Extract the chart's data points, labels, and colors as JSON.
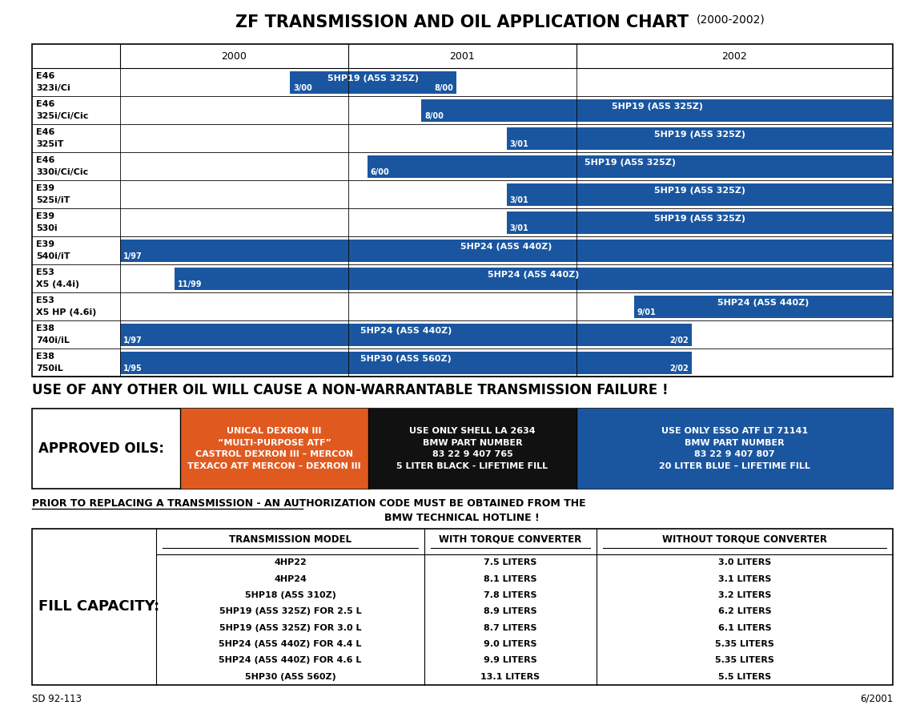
{
  "title_main": "ZF TRANSMISSION AND OIL APPLICATION CHART",
  "title_sub": "(2000-2002)",
  "bg_color": "#ffffff",
  "blue": "#1a56a0",
  "orange": "#e05a20",
  "black_fill": "#111111",
  "rows": [
    {
      "car1": "E46",
      "car2": "323i/Ci",
      "label": "5HP19 (A5S 325Z)",
      "bs": 0.22,
      "be": 0.435,
      "nl": "3/00",
      "nr": "8/00"
    },
    {
      "car1": "E46",
      "car2": "325i/Ci/Cic",
      "label": "5HP19 (A5S 325Z)",
      "bs": 0.39,
      "be": 1.0,
      "nl": "8/00",
      "nr": ""
    },
    {
      "car1": "E46",
      "car2": "325iT",
      "label": "5HP19 (A5S 325Z)",
      "bs": 0.5,
      "be": 1.0,
      "nl": "3/01",
      "nr": ""
    },
    {
      "car1": "E46",
      "car2": "330i/Ci/Cic",
      "label": "5HP19 (A5S 325Z)",
      "bs": 0.32,
      "be": 1.0,
      "nl": "6/00",
      "nr": ""
    },
    {
      "car1": "E39",
      "car2": "525i/iT",
      "label": "5HP19 (A5S 325Z)",
      "bs": 0.5,
      "be": 1.0,
      "nl": "3/01",
      "nr": ""
    },
    {
      "car1": "E39",
      "car2": "530i",
      "label": "5HP19 (A5S 325Z)",
      "bs": 0.5,
      "be": 1.0,
      "nl": "3/01",
      "nr": ""
    },
    {
      "car1": "E39",
      "car2": "540i/iT",
      "label": "5HP24 (A5S 440Z)",
      "bs": 0.0,
      "be": 1.0,
      "nl": "1/97",
      "nr": ""
    },
    {
      "car1": "E53",
      "car2": "X5 (4.4i)",
      "label": "5HP24 (A5S 440Z)",
      "bs": 0.07,
      "be": 1.0,
      "nl": "11/99",
      "nr": ""
    },
    {
      "car1": "E53",
      "car2": "X5 HP (4.6i)",
      "label": "5HP24 (A5S 440Z)",
      "bs": 0.665,
      "be": 1.0,
      "nl": "9/01",
      "nr": ""
    },
    {
      "car1": "E38",
      "car2": "740i/iL",
      "label": "5HP24 (A5S 440Z)",
      "bs": 0.0,
      "be": 0.74,
      "nl": "1/97",
      "nr": "2/02"
    },
    {
      "car1": "E38",
      "car2": "750iL",
      "label": "5HP30 (A5S 560Z)",
      "bs": 0.0,
      "be": 0.74,
      "nl": "1/95",
      "nr": "2/02"
    }
  ],
  "approved_oils": {
    "orange_text": "UNICAL DEXRON III\n“MULTI-PURPOSE ATF”\nCASTROL DEXRON III – MERCON\nTEXACO ATF MERCON – DEXRON III",
    "black_text": "USE ONLY SHELL LA 2634\nBMW PART NUMBER\n83 22 9 407 765\n5 LITER BLACK - LIFETIME FILL",
    "blue_text": "USE ONLY ESSO ATF LT 71141\nBMW PART NUMBER\n83 22 9 407 807\n20 LITER BLUE – LIFETIME FILL"
  },
  "warning_text": "USE OF ANY OTHER OIL WILL CAUSE A NON-WARRANTABLE TRANSMISSION FAILURE !",
  "prior_text1": "PRIOR TO REPLACING A TRANSMISSION - AN AUTHORIZATION CODE MUST BE OBTAINED FROM THE",
  "prior_text2": "BMW TECHNICAL HOTLINE !",
  "fill_capacity": {
    "models": [
      "4HP22",
      "4HP24",
      "5HP18 (A5S 310Z)",
      "5HP19 (A5S 325Z) FOR 2.5 L",
      "5HP19 (A5S 325Z) FOR 3.0 L",
      "5HP24 (A5S 440Z) FOR 4.4 L",
      "5HP24 (A5S 440Z) FOR 4.6 L",
      "5HP30 (A5S 560Z)"
    ],
    "with_tc": [
      "7.5 LITERS",
      "8.1 LITERS",
      "7.8 LITERS",
      "8.9 LITERS",
      "8.7 LITERS",
      "9.0 LITERS",
      "9.9 LITERS",
      "13.1 LITERS"
    ],
    "without_tc": [
      "3.0 LITERS",
      "3.1 LITERS",
      "3.2 LITERS",
      "6.2 LITERS",
      "6.1 LITERS",
      "5.35 LITERS",
      "5.35 LITERS",
      "5.5 LITERS"
    ]
  },
  "footer_left": "SD 92-113",
  "footer_right": "6/2001"
}
